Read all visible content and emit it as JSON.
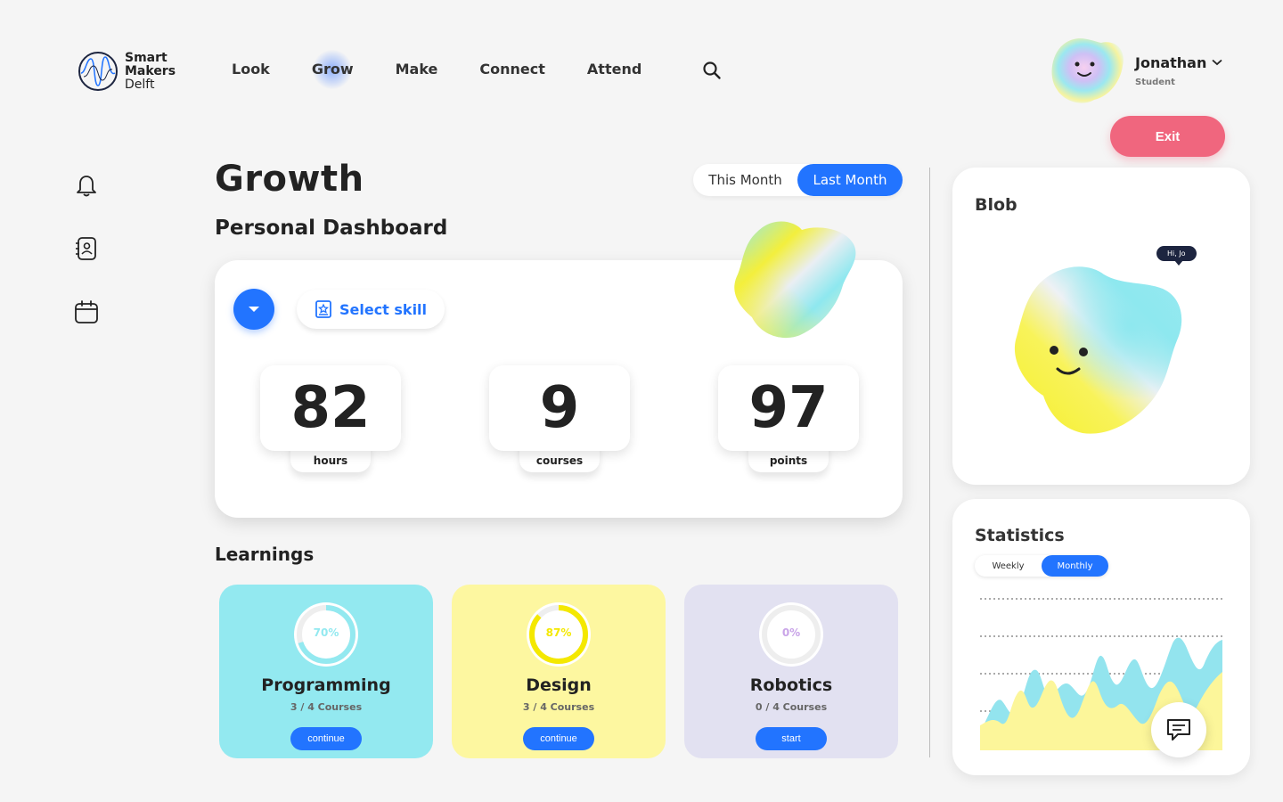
{
  "brand": {
    "line1": "Smart",
    "line2": "Makers",
    "line3": "Delft"
  },
  "nav": {
    "items": [
      "Look",
      "Grow",
      "Make",
      "Connect",
      "Attend"
    ],
    "active": "Grow"
  },
  "user": {
    "name": "Jonathan",
    "role": "Student"
  },
  "exit_label": "Exit",
  "page": {
    "title": "Growth",
    "subtitle": "Personal Dashboard",
    "period_options": [
      "This Month",
      "Last Month"
    ],
    "active_period": "Last Month"
  },
  "dashboard": {
    "select_skill": "Select skill",
    "stats": [
      {
        "value": "82",
        "label": "hours"
      },
      {
        "value": "9",
        "label": "courses"
      },
      {
        "value": "97",
        "label": "points"
      }
    ]
  },
  "learnings": {
    "title": "Learnings",
    "items": [
      {
        "name": "Programming",
        "percent_label": "70%",
        "progress": 0.7,
        "courses": "3 / 4 Courses",
        "action": "continue",
        "bg": "#93e9f0",
        "accent": "#93e9f0"
      },
      {
        "name": "Design",
        "percent_label": "87%",
        "progress": 0.87,
        "courses": "3 / 4 Courses",
        "action": "continue",
        "bg": "#fdf7a0",
        "accent": "#f4e800"
      },
      {
        "name": "Robotics",
        "percent_label": "0%",
        "progress": 0.0,
        "courses": "0 / 4 Courses",
        "action": "start",
        "bg": "#e2e1f1",
        "accent": "#c9a4e8"
      }
    ]
  },
  "blob": {
    "title": "Blob",
    "speech": "Hi, Jo"
  },
  "statistics": {
    "title": "Statistics",
    "options": [
      "Weekly",
      "Monthly"
    ],
    "active": "Monthly"
  },
  "colors": {
    "accent": "#2274ff",
    "exit": "#f0667e",
    "cyan": "#93e9f0",
    "yellow": "#fdf7a0"
  },
  "icons": [
    "search-icon",
    "bell-icon",
    "contacts-icon",
    "calendar-icon",
    "chevron-down-icon",
    "skill-badge-icon",
    "chat-icon"
  ]
}
